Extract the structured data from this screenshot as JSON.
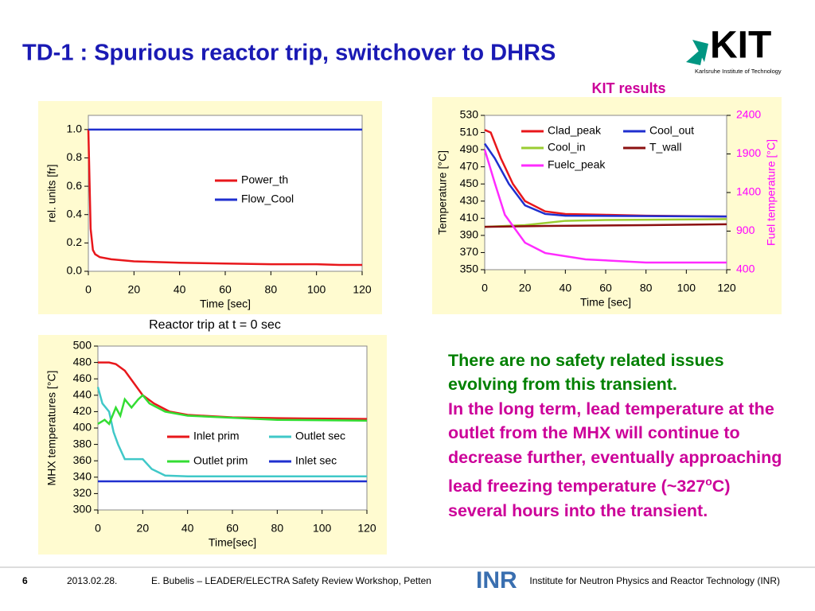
{
  "header": {
    "title": "TD-1 : Spurious reactor trip, switchover to DHRS",
    "logo": "KIT",
    "logo_subtitle": "Karlsruhe Institute of Technology"
  },
  "chart_data": [
    {
      "type": "line",
      "annotation": "Reactor trip at t = 0 sec",
      "xlabel": "Time [sec]",
      "ylabel": "rel. units  [fr]",
      "xlim": [
        0,
        120
      ],
      "xticks": [
        0,
        20,
        40,
        60,
        80,
        100,
        120
      ],
      "ylim": [
        0,
        1.1
      ],
      "yticks": [
        {
          "value": 0,
          "label": "0.0"
        },
        0.2,
        0.4,
        0.6,
        0.8,
        {
          "value": 1,
          "label": "1.0"
        }
      ],
      "series": [
        {
          "name": "Power_th",
          "color": "#e8171b",
          "x": [
            0,
            1,
            2,
            3,
            5,
            10,
            20,
            40,
            60,
            80,
            100,
            110,
            120
          ],
          "values": [
            1.0,
            0.3,
            0.15,
            0.12,
            0.1,
            0.085,
            0.07,
            0.06,
            0.055,
            0.05,
            0.05,
            0.045,
            0.045
          ]
        },
        {
          "name": "Flow_Cool",
          "color": "#1f2fcf",
          "x": [
            0,
            120
          ],
          "values": [
            1.0,
            1.0
          ]
        }
      ]
    },
    {
      "type": "line",
      "title": "KIT results",
      "xlabel": "Time [sec]",
      "ylabel": "Temperature  [°C]",
      "y2label": "Fuel temperature [°C]",
      "xlim": [
        0,
        120
      ],
      "xticks": [
        0,
        20,
        40,
        60,
        80,
        100,
        120
      ],
      "ylim": [
        350,
        530
      ],
      "yticks": [
        350,
        370,
        390,
        410,
        430,
        450,
        470,
        490,
        510,
        530
      ],
      "y2lim": [
        400,
        2400
      ],
      "y2ticks": [
        400,
        900,
        1400,
        1900,
        2400
      ],
      "series": [
        {
          "name": "Clad_peak",
          "color": "#e8171b",
          "x": [
            0,
            3,
            8,
            14,
            20,
            30,
            40,
            60,
            80,
            120
          ],
          "values": [
            513,
            510,
            480,
            450,
            430,
            418,
            415,
            414,
            413,
            412
          ]
        },
        {
          "name": "Cool_out",
          "color": "#1f2fcf",
          "x": [
            0,
            5,
            12,
            20,
            30,
            40,
            120
          ],
          "values": [
            497,
            480,
            450,
            425,
            415,
            413,
            412
          ]
        },
        {
          "name": "Cool_in",
          "color": "#9acd32",
          "x": [
            0,
            20,
            40,
            60,
            120
          ],
          "values": [
            400,
            402,
            407,
            408,
            409
          ]
        },
        {
          "name": "T_wall",
          "color": "#8b1010",
          "x": [
            0,
            30,
            80,
            120
          ],
          "values": [
            400,
            401,
            402,
            403
          ]
        },
        {
          "name": "Fuelc_peak",
          "color": "#ff2bff",
          "axis": "y2",
          "x": [
            0,
            5,
            10,
            20,
            30,
            50,
            80,
            120
          ],
          "values": [
            1957,
            1524,
            1111,
            750,
            616,
            534,
            493,
            493
          ]
        }
      ]
    },
    {
      "type": "line",
      "xlabel": "Time[sec]",
      "ylabel": "MHX temperatures [°C]",
      "xlim": [
        0,
        120
      ],
      "xticks": [
        0,
        20,
        40,
        60,
        80,
        100,
        120
      ],
      "ylim": [
        300,
        500
      ],
      "yticks": [
        300,
        320,
        340,
        360,
        380,
        400,
        420,
        440,
        460,
        480,
        500
      ],
      "series": [
        {
          "name": "Inlet prim",
          "color": "#e8171b",
          "x": [
            0,
            5,
            8,
            12,
            16,
            20,
            25,
            32,
            40,
            60,
            80,
            120
          ],
          "values": [
            480,
            480,
            478,
            470,
            455,
            440,
            430,
            420,
            416,
            413,
            412,
            411
          ]
        },
        {
          "name": "Outlet sec",
          "color": "#40c8c8",
          "x": [
            0,
            2,
            5,
            7,
            9,
            12,
            20,
            24,
            30,
            40,
            120
          ],
          "values": [
            450,
            430,
            420,
            395,
            380,
            362,
            362,
            350,
            342,
            341,
            341
          ]
        },
        {
          "name": "Outlet prim",
          "color": "#33dd33",
          "x": [
            0,
            3,
            5,
            8,
            10,
            12,
            15,
            18,
            20,
            23,
            30,
            40,
            80,
            120
          ],
          "values": [
            405,
            410,
            405,
            425,
            415,
            435,
            425,
            435,
            440,
            430,
            420,
            415,
            410,
            409
          ]
        },
        {
          "name": "Inlet sec",
          "color": "#1f2fcf",
          "x": [
            0,
            120
          ],
          "values": [
            335,
            335
          ]
        }
      ]
    }
  ],
  "text": {
    "conclusion": "There are no safety related issues evolving from this transient.",
    "outlook_1": "In the long term, lead temperature at the outlet from the MHX will continue to decrease further, eventually approaching lead freezing temperature (~327",
    "outlook_sup": "o",
    "outlook_2": "C) several hours into the transient."
  },
  "footer": {
    "page": "6",
    "date": "2013.02.28.",
    "event": "E. Bubelis – LEADER/ELECTRA Safety Review Workshop, Petten",
    "inst_logo": "INR",
    "institute": "Institute for Neutron Physics and Reactor Technology (INR)"
  }
}
